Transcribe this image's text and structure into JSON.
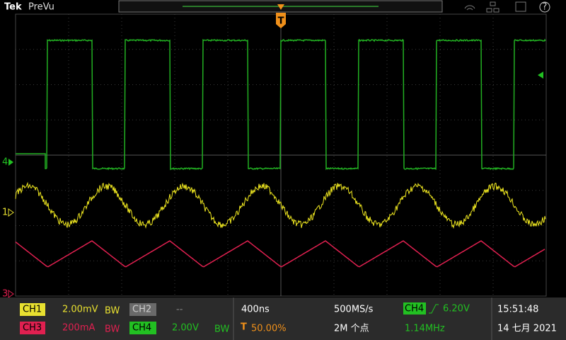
{
  "header": {
    "brand": "Tek",
    "mode": "PreVu"
  },
  "markers": {
    "ch4": "4",
    "ch1": "1",
    "ch3": "3",
    "trigger": "T"
  },
  "status": {
    "ch1": {
      "label": "CH1",
      "scale": "2.00mV",
      "bw": "BW"
    },
    "ch2": {
      "label": "CH2",
      "scale": "--"
    },
    "ch3": {
      "label": "CH3",
      "scale": "200mA",
      "bw": "BW"
    },
    "ch4": {
      "label": "CH4",
      "scale": "2.00V",
      "bw": "BW"
    },
    "horizontal": {
      "scale": "400ns",
      "position": "50.00%",
      "sample_rate": "500MS/s",
      "record_length": "2M 个点"
    },
    "trigger": {
      "source": "CH4",
      "level": "6.20V",
      "frequency": "1.14MHz"
    },
    "clock": {
      "time": "15:51:48",
      "date": "14 七月 2021"
    }
  }
}
